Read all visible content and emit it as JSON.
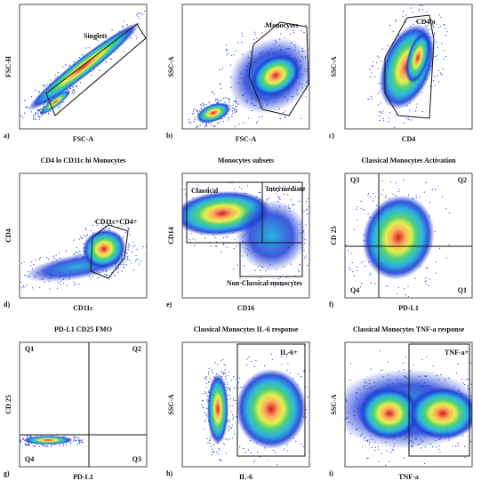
{
  "panels": [
    {
      "letter": "a)",
      "x_label": "FSC-A",
      "y_label": "FSC-H",
      "gates": [
        "Singlets"
      ]
    },
    {
      "letter": "b)",
      "x_label": "FSC-A",
      "y_label": "SSC-A",
      "gates": [
        "Monocytes"
      ]
    },
    {
      "letter": "c)",
      "x_label": "CD4",
      "y_label": "SSC-A",
      "gates": [
        "CD4lo"
      ]
    },
    {
      "letter": "d)",
      "title": "CD4 lo CD11c hi Monocytes",
      "x_label": "CD11c",
      "y_label": "CD4",
      "gates": [
        "CD11c+CD4+"
      ]
    },
    {
      "letter": "e)",
      "title": "Monocytes subsets",
      "x_label": "CD16",
      "y_label": "CD14",
      "gates": [
        "Classical",
        "Intermediate",
        "Non-Classical monocytes"
      ]
    },
    {
      "letter": "f)",
      "title": "Classical Monocytes Activation",
      "x_label": "PD-L1",
      "y_label": "CD 25",
      "gates": [
        "Q3",
        "Q2",
        "Q4",
        "Q1"
      ]
    },
    {
      "letter": "g)",
      "title": "PD-L1 CD25 FMO",
      "x_label": "PD-L1",
      "y_label": "CD 25",
      "gates": [
        "Q1",
        "Q2",
        "Q4",
        "Q3"
      ]
    },
    {
      "letter": "h)",
      "title": "Classical Monocytes IL-6 response",
      "x_label": "IL-6",
      "y_label": "SSC-A",
      "gates": [
        "IL-6+"
      ]
    },
    {
      "letter": "i)",
      "title": "Classical Monocytes TNF-a response",
      "x_label": "TNF-a",
      "y_label": "SSC-A",
      "gates": [
        "TNF-a+"
      ]
    }
  ]
}
